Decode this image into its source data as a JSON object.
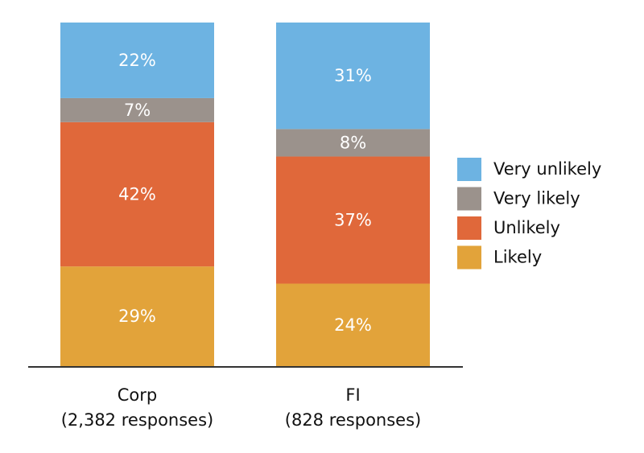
{
  "chart_data": {
    "type": "bar",
    "stacked": true,
    "title": "",
    "xlabel": "",
    "ylabel": "",
    "ylim": [
      0,
      100
    ],
    "grid": false,
    "legend_position": "right",
    "categories": [
      {
        "name": "Corp",
        "sub": "(2,382 responses)"
      },
      {
        "name": "FI",
        "sub": "(828 responses)"
      }
    ],
    "series": [
      {
        "name": "Likely",
        "color": "#E2A33A",
        "values": [
          29,
          24
        ]
      },
      {
        "name": "Unlikely",
        "color": "#E0683A",
        "values": [
          42,
          37
        ]
      },
      {
        "name": "Very likely",
        "color": "#9B928C",
        "values": [
          7,
          8
        ]
      },
      {
        "name": "Very unlikely",
        "color": "#6DB3E2",
        "values": [
          22,
          31
        ]
      }
    ],
    "legend_order": [
      "Very unlikely",
      "Very likely",
      "Unlikely",
      "Likely"
    ],
    "value_suffix": "%"
  }
}
